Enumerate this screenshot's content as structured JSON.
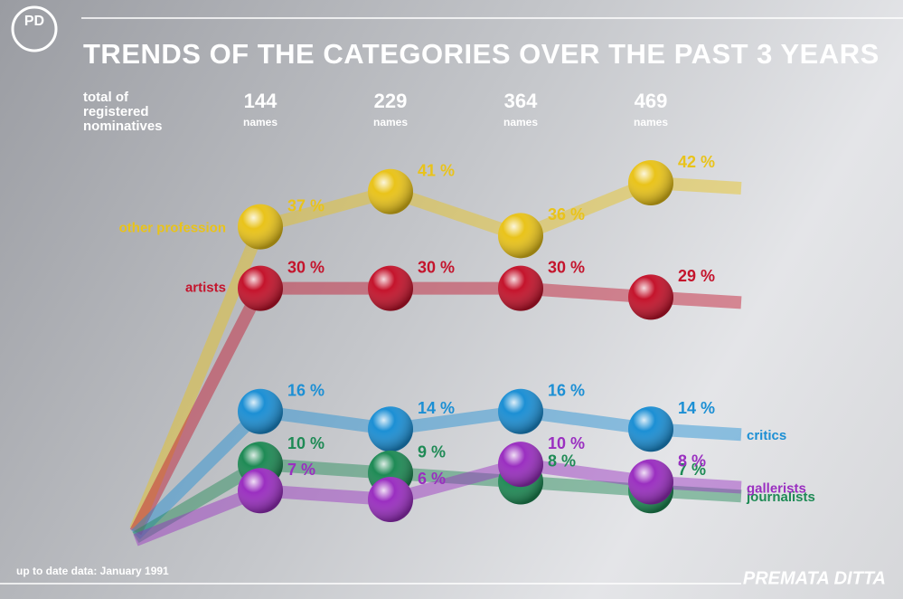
{
  "chart_data": {
    "type": "line",
    "title": "TRENDS OF THE CATEGORIES OVER THE PAST 3 YEARS",
    "category_title": [
      "total of",
      "registered",
      "nominatives"
    ],
    "categories": [
      "144",
      "229",
      "364",
      "469"
    ],
    "category_unit": "names",
    "footnote": "up to date data: January 1991",
    "brand": "PREMATA DITTA",
    "series": [
      {
        "name": "other profession",
        "color": "#e9c31a",
        "values": [
          37,
          41,
          36,
          42
        ],
        "value_labels": [
          "37 %",
          "41 %",
          "36 %",
          "42 %"
        ]
      },
      {
        "name": "artists",
        "color": "#c4142c",
        "values": [
          30,
          30,
          30,
          29
        ],
        "value_labels": [
          "30 %",
          "30 %",
          "30 %",
          "29 %"
        ]
      },
      {
        "name": "critics",
        "color": "#1c8fd4",
        "values": [
          16,
          14,
          16,
          14
        ],
        "value_labels": [
          "16 %",
          "14 %",
          "16 %",
          "14 %"
        ]
      },
      {
        "name": "journalists",
        "color": "#1e8a55",
        "values": [
          10,
          9,
          8,
          7
        ],
        "value_labels": [
          "10 %",
          "9 %",
          "8 %",
          "7 %"
        ]
      },
      {
        "name": "gallerists",
        "color": "#9a2fc0",
        "values": [
          7,
          6,
          10,
          8
        ],
        "value_labels": [
          "7 %",
          "6 %",
          "10 %",
          "8 %"
        ]
      }
    ]
  }
}
